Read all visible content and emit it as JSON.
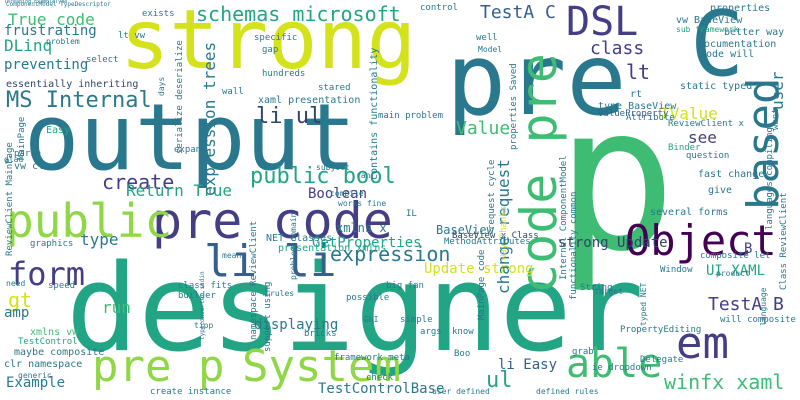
{
  "palette": {
    "background": "#ffffff",
    "yellow": "#d3e21b",
    "lime": "#8fd744",
    "green": "#3fbc73",
    "teal": "#21a585",
    "cyan": "#2a788e",
    "blue": "#355f8d",
    "indigo": "#433e85",
    "purple": "#440154",
    "navy": "#31446b"
  },
  "words": {
    "designer": "designer",
    "output": "output",
    "strong": "strong",
    "pre_big": "pre",
    "p_big": "p",
    "c_big": "C",
    "pre_code": "pre code",
    "object": "Object",
    "public": "public",
    "pre_p": "pre p",
    "li_li": "li li",
    "code_pre": "code pre",
    "based": "based",
    "system": "System",
    "dsl": "DSL",
    "form": "form",
    "able": "able",
    "em": "em",
    "ms_internal": "MS Internal",
    "public_bool": "public bool",
    "schemas_microsoft": "schemas microsoft",
    "expression": "expression",
    "create": "create",
    "return_true": "Return True",
    "value": "Value",
    "li_ul": "li ul",
    "testa_c": "TestA C",
    "class": "class",
    "lt": "lt",
    "true_code": "True code",
    "dlinq": "DLinq",
    "frustrating": "frustrating",
    "preventing": "preventing",
    "gt": "gt",
    "amp": "amp",
    "type": "type",
    "run": "run",
    "example": "Example",
    "ul": "ul",
    "li_easy": "li Easy",
    "winfx_xaml": "winfx xaml",
    "testa_b": "TestA B",
    "ui_xaml": "UI XAML",
    "tvalue": "TValue",
    "see": "see",
    "user": "user",
    "boolean": "Boolean",
    "displaying": "displaying",
    "testcontrolbase": "TestControlBase",
    "change_request": "change request",
    "update_strong": "Update strong",
    "strong_update": "strong Update",
    "getproperties": "GetProperties",
    "expression_trees": "expression trees",
    "basewiew": "BaseView",
    "essentially_inheriting": "essentially inheriting",
    "xmlns_vw": "xmlns vw",
    "maybe_composite": "maybe composite",
    "clr_namespace": "clr namespace",
    "testcontrol": "TestControl",
    "generic": "generic",
    "xmlns_x": "xmlns x",
    "net_classes": "NET classes",
    "presentation_xmlns": "presentation xmlns",
    "xaml_presentation": "xaml presentation",
    "contains_functionality": "contains functionality",
    "main_problem": "main problem",
    "type_baseview": "type BaseView",
    "valueproperty": "ValueProperty",
    "reviewclient_x": "ReviewClient x",
    "static_typed": "static typed",
    "code_will": "code will",
    "better_way": "better way",
    "documentation": "documentation",
    "properties": "properties",
    "vw_baseview": "vw BaseView",
    "sub_framework": "sub framework",
    "want": "want",
    "fast_change": "fast change",
    "question": "question",
    "give": "give",
    "binder": "Binder",
    "composite_let": "composite let",
    "several_forms": "several forms",
    "window": "Window",
    "product": "product",
    "will_composite": "will composite",
    "language": "language",
    "delegate": "Delegate",
    "propertyediting": "PropertyEditing",
    "typed_net": "typed NET",
    "target": "target",
    "grab": "grab",
    "methodattributes": "MethodAttributes",
    "baseview_x_class": "BaseView x Class",
    "boo": "Boo",
    "know": "know",
    "args": "args",
    "simple": "simple",
    "big_fan": "big fan",
    "possible": "possible",
    "gui": "GUI",
    "bricks": "bricks",
    "framework_meta": "framework meta",
    "check": "check",
    "user_defined": "user defined",
    "defined_rules": "defined rules",
    "ie_dropdown": "ie dropdown",
    "create_instance": "create instance",
    "class_fits": "class fits",
    "builder": "builder",
    "tipp": "tipp",
    "speed": "speed",
    "graphics": "graphics",
    "need": "need",
    "vw_clr": "vw clr",
    "parse": "parse",
    "glad": "glad",
    "wall": "wall",
    "hundreds": "hundreds",
    "stared": "stared",
    "gap": "gap",
    "specific": "specific",
    "select": "select",
    "control": "control",
    "exists": "exists",
    "lt_vw": "lt vw",
    "well": "well",
    "model": "Model",
    "problem": "problem",
    "expand": "expand",
    "days": "days",
    "subject": "subject",
    "ran": "ran",
    "compile": "compile",
    "works_fine": "works fine",
    "il": "IL",
    "mean": "mean",
    "rules": "rules",
    "mainpage_code": "MainPage code",
    "way_thanks": "way Thanks",
    "request_cycle": "request cycle",
    "functionality_common": "functionality common",
    "internal_componentmodel": "Internal ComponentModel",
    "attribute": "Attribute",
    "properties_saved": "properties Saved",
    "support_using": "support using",
    "namespace_reviewclient": "namespace ReviewClient",
    "problem_domain": "problem domain",
    "serialize_deserialize": "serialize deserialize",
    "reviewclient_mainpage": "ReviewClient MainPage",
    "mainpage": "MainPage",
    "easy": "Easy",
    "typeconverter_stdin": "typeconverter stdin",
    "class_reviewclient": "Class ReviewClient",
    "languages_compiling": "languages compiling",
    "string": "String",
    "b": "B",
    "rt": "rt",
    "componentmodel_typedescriptor": "ComponentModel TypeDescriptor",
    "threading_example": "Threading ExampleType"
  }
}
